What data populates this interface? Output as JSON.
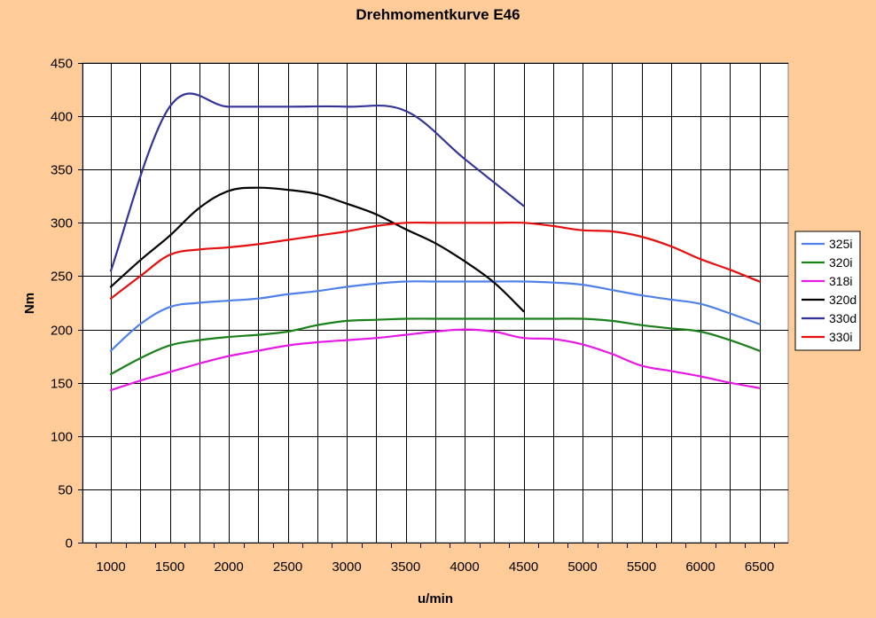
{
  "chart_data": {
    "type": "line",
    "title": "Drehmomentkurve E46",
    "xlabel": "u/min",
    "ylabel": "Nm",
    "ylim": [
      0,
      450
    ],
    "y_ticks": [
      0,
      50,
      100,
      150,
      200,
      250,
      300,
      350,
      400,
      450
    ],
    "categories": [
      "1000",
      "1500",
      "2000",
      "2500",
      "3000",
      "3500",
      "4000",
      "4500",
      "5000",
      "5500",
      "6000",
      "6500"
    ],
    "grid": true,
    "legend_position": "right",
    "series": [
      {
        "name": "325i",
        "color": "#4f81e8",
        "points": [
          [
            1000,
            180
          ],
          [
            1250,
            205
          ],
          [
            1500,
            221
          ],
          [
            1750,
            225
          ],
          [
            2000,
            227
          ],
          [
            2250,
            229
          ],
          [
            2500,
            233
          ],
          [
            2750,
            236
          ],
          [
            3000,
            240
          ],
          [
            3250,
            243
          ],
          [
            3500,
            245
          ],
          [
            3750,
            245
          ],
          [
            4000,
            245
          ],
          [
            4250,
            245
          ],
          [
            4500,
            245
          ],
          [
            4750,
            244
          ],
          [
            5000,
            242
          ],
          [
            5250,
            237
          ],
          [
            5500,
            232
          ],
          [
            5750,
            228
          ],
          [
            6000,
            224
          ],
          [
            6250,
            215
          ],
          [
            6500,
            205
          ]
        ]
      },
      {
        "name": "320i",
        "color": "#1a801a",
        "points": [
          [
            1000,
            158
          ],
          [
            1250,
            173
          ],
          [
            1500,
            185
          ],
          [
            1750,
            190
          ],
          [
            2000,
            193
          ],
          [
            2250,
            195
          ],
          [
            2500,
            198
          ],
          [
            2750,
            204
          ],
          [
            3000,
            208
          ],
          [
            3250,
            209
          ],
          [
            3500,
            210
          ],
          [
            3750,
            210
          ],
          [
            4000,
            210
          ],
          [
            4250,
            210
          ],
          [
            4500,
            210
          ],
          [
            4750,
            210
          ],
          [
            5000,
            210
          ],
          [
            5250,
            208
          ],
          [
            5500,
            204
          ],
          [
            5750,
            201
          ],
          [
            6000,
            198
          ],
          [
            6250,
            190
          ],
          [
            6500,
            180
          ]
        ]
      },
      {
        "name": "318i",
        "color": "#e619e6",
        "points": [
          [
            1000,
            143
          ],
          [
            1250,
            152
          ],
          [
            1500,
            160
          ],
          [
            1750,
            168
          ],
          [
            2000,
            175
          ],
          [
            2250,
            180
          ],
          [
            2500,
            185
          ],
          [
            2750,
            188
          ],
          [
            3000,
            190
          ],
          [
            3250,
            192
          ],
          [
            3500,
            195
          ],
          [
            3750,
            198
          ],
          [
            4000,
            200
          ],
          [
            4250,
            198
          ],
          [
            4500,
            192
          ],
          [
            4750,
            191
          ],
          [
            5000,
            186
          ],
          [
            5250,
            177
          ],
          [
            5500,
            166
          ],
          [
            5750,
            161
          ],
          [
            6000,
            156
          ],
          [
            6250,
            150
          ],
          [
            6500,
            145
          ]
        ]
      },
      {
        "name": "320d",
        "color": "#000000",
        "points": [
          [
            1000,
            240
          ],
          [
            1250,
            265
          ],
          [
            1500,
            288
          ],
          [
            1750,
            314
          ],
          [
            2000,
            330
          ],
          [
            2250,
            333
          ],
          [
            2500,
            331
          ],
          [
            2750,
            327
          ],
          [
            3000,
            318
          ],
          [
            3250,
            308
          ],
          [
            3500,
            294
          ],
          [
            3750,
            281
          ],
          [
            4000,
            264
          ],
          [
            4250,
            244
          ],
          [
            4500,
            217
          ]
        ]
      },
      {
        "name": "330d",
        "color": "#333399",
        "points": [
          [
            1000,
            255
          ],
          [
            1500,
            409
          ],
          [
            2000,
            409
          ],
          [
            2500,
            409
          ],
          [
            3000,
            409
          ],
          [
            3500,
            405
          ],
          [
            4000,
            360
          ],
          [
            4500,
            316
          ]
        ]
      },
      {
        "name": "330i",
        "color": "#e60f0f",
        "points": [
          [
            1000,
            229
          ],
          [
            1250,
            250
          ],
          [
            1500,
            270
          ],
          [
            1750,
            275
          ],
          [
            2000,
            277
          ],
          [
            2250,
            280
          ],
          [
            2500,
            284
          ],
          [
            2750,
            288
          ],
          [
            3000,
            292
          ],
          [
            3250,
            297
          ],
          [
            3500,
            300
          ],
          [
            3750,
            300
          ],
          [
            4000,
            300
          ],
          [
            4250,
            300
          ],
          [
            4500,
            300
          ],
          [
            4750,
            297
          ],
          [
            5000,
            293
          ],
          [
            5250,
            292
          ],
          [
            5500,
            287
          ],
          [
            5750,
            278
          ],
          [
            6000,
            266
          ],
          [
            6250,
            256
          ],
          [
            6500,
            245
          ]
        ]
      }
    ]
  }
}
